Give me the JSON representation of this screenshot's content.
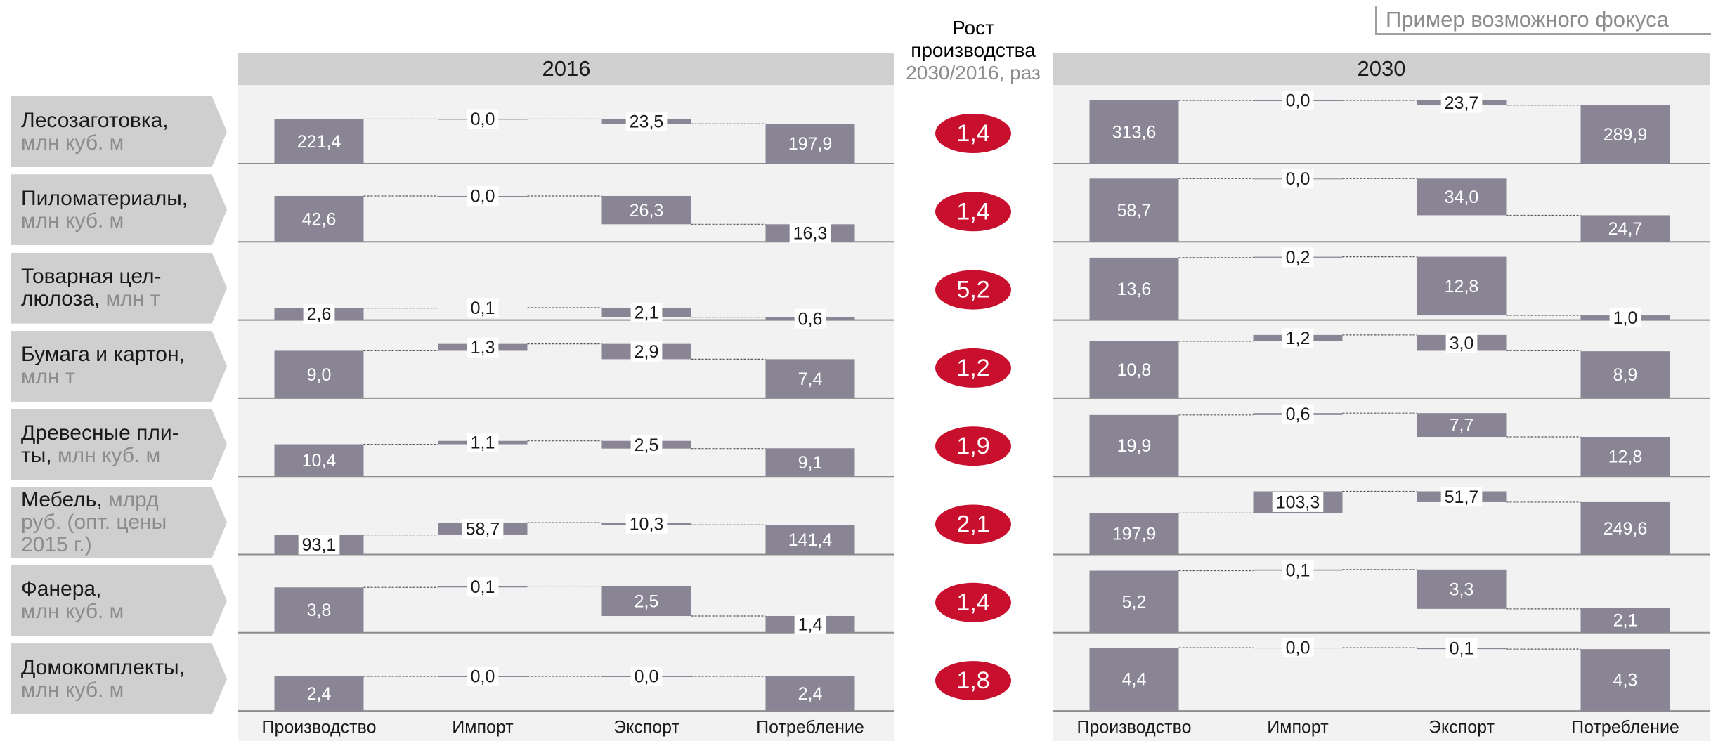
{
  "chart_data": {
    "type": "waterfall",
    "annotation": "Пример возможного фокуса",
    "categories": [
      "Производство",
      "Импорт",
      "Экспорт",
      "Потребление"
    ],
    "color": "#8a8595",
    "rows": [
      {
        "name": "Лесозаготовка,\n",
        "unit": "млн куб. м"
      },
      {
        "name": "Пиломатериалы,\n",
        "unit": "млн куб. м"
      },
      {
        "name": "Товарная цел-\nлюлоза, ",
        "unit": "млн т"
      },
      {
        "name": "Бумага и картон,\n",
        "unit": "млн т"
      },
      {
        "name": "Древесные пли-\nты, ",
        "unit": "млн куб. м"
      },
      {
        "name": "Мебель, ",
        "unit": "млрд\nруб. (опт. цены\n2015 г.)"
      },
      {
        "name": "Фанера,\n",
        "unit": "млн куб. м"
      },
      {
        "name": "Домокомплекты,\n",
        "unit": "млн куб. м"
      }
    ],
    "panels": [
      {
        "title": "2016",
        "rows": [
          {
            "values": [
              221.4,
              0.0,
              23.5,
              197.9
            ],
            "value_labels": [
              "221,4",
              "0,0",
              "23,5",
              "197,9"
            ]
          },
          {
            "values": [
              42.6,
              0.0,
              26.3,
              16.3
            ],
            "value_labels": [
              "42,6",
              "0,0",
              "26,3",
              "16,3"
            ]
          },
          {
            "values": [
              2.6,
              0.1,
              2.1,
              0.6
            ],
            "value_labels": [
              "2,6",
              "0,1",
              "2,1",
              "0,6"
            ]
          },
          {
            "values": [
              9.0,
              1.3,
              2.9,
              7.4
            ],
            "value_labels": [
              "9,0",
              "1,3",
              "2,9",
              "7,4"
            ]
          },
          {
            "values": [
              10.4,
              1.1,
              2.5,
              9.1
            ],
            "value_labels": [
              "10,4",
              "1,1",
              "2,5",
              "9,1"
            ]
          },
          {
            "values": [
              93.1,
              58.7,
              10.3,
              141.4
            ],
            "value_labels": [
              "93,1",
              "58,7",
              "10,3",
              "141,4"
            ]
          },
          {
            "values": [
              3.8,
              0.1,
              2.5,
              1.4
            ],
            "value_labels": [
              "3,8",
              "0,1",
              "2,5",
              "1,4"
            ]
          },
          {
            "values": [
              2.4,
              0.0,
              0.0,
              2.4
            ],
            "value_labels": [
              "2,4",
              "0,0",
              "0,0",
              "2,4"
            ]
          }
        ]
      },
      {
        "title": "2030",
        "rows": [
          {
            "values": [
              313.6,
              0.0,
              23.7,
              289.9
            ],
            "value_labels": [
              "313,6",
              "0,0",
              "23,7",
              "289,9"
            ]
          },
          {
            "values": [
              58.7,
              0.0,
              34.0,
              24.7
            ],
            "value_labels": [
              "58,7",
              "0,0",
              "34,0",
              "24,7"
            ]
          },
          {
            "values": [
              13.6,
              0.2,
              12.8,
              1.0
            ],
            "value_labels": [
              "13,6",
              "0,2",
              "12,8",
              "1,0"
            ]
          },
          {
            "values": [
              10.8,
              1.2,
              3.0,
              8.9
            ],
            "value_labels": [
              "10,8",
              "1,2",
              "3,0",
              "8,9"
            ]
          },
          {
            "values": [
              19.9,
              0.6,
              7.7,
              12.8
            ],
            "value_labels": [
              "19,9",
              "0,6",
              "7,7",
              "12,8"
            ]
          },
          {
            "values": [
              197.9,
              103.3,
              51.7,
              249.6
            ],
            "value_labels": [
              "197,9",
              "103,3",
              "51,7",
              "249,6"
            ]
          },
          {
            "values": [
              5.2,
              0.1,
              3.3,
              2.1
            ],
            "value_labels": [
              "5,2",
              "0,1",
              "3,3",
              "2,1"
            ]
          },
          {
            "values": [
              4.4,
              0.0,
              0.1,
              4.3
            ],
            "value_labels": [
              "4,4",
              "0,0",
              "0,1",
              "4,3"
            ]
          }
        ]
      }
    ],
    "growth": {
      "title": "Рост производства",
      "subtitle": "2030/2016, раз",
      "color": "#c8102e",
      "values": [
        1.4,
        1.4,
        5.2,
        1.2,
        1.9,
        2.1,
        1.4,
        1.8
      ],
      "value_labels": [
        "1,4",
        "1,4",
        "5,2",
        "1,2",
        "1,9",
        "2,1",
        "1,4",
        "1,8"
      ]
    }
  }
}
